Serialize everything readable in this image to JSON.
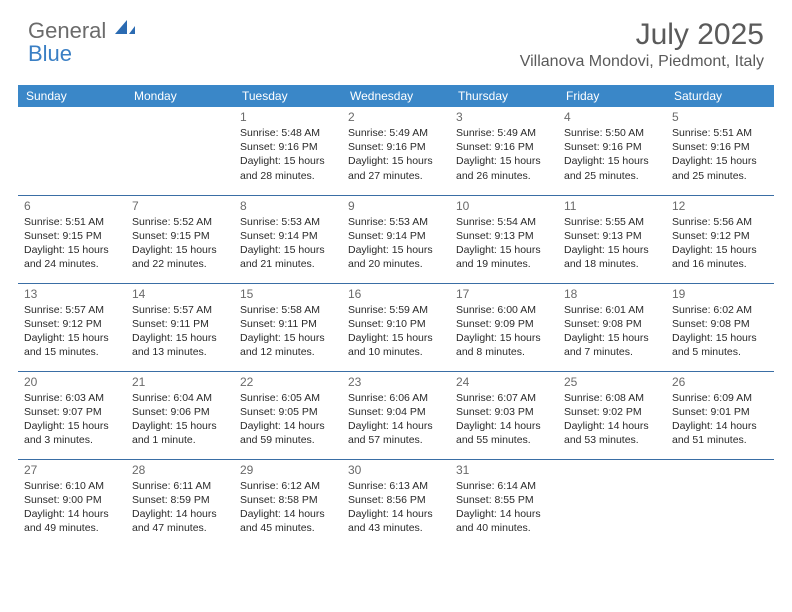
{
  "logo": {
    "word1": "General",
    "word2": "Blue"
  },
  "title": "July 2025",
  "location": "Villanova Mondovi, Piedmont, Italy",
  "colors": {
    "header_bg": "#3a87c8",
    "header_text": "#ffffff",
    "row_border": "#3a6ea5",
    "text_dark": "#2a2a2a",
    "text_muted": "#6a6a6a",
    "logo_gray": "#6b6b6b",
    "logo_blue": "#3a7fc4",
    "title_color": "#5a5a5a",
    "page_bg": "#ffffff"
  },
  "typography": {
    "month_title_pt": 30,
    "location_pt": 16,
    "weekday_pt": 12,
    "daynum_pt": 12,
    "dayinfo_pt": 10.5,
    "logo_pt": 22,
    "font_family": "Arial"
  },
  "weekdays": [
    "Sunday",
    "Monday",
    "Tuesday",
    "Wednesday",
    "Thursday",
    "Friday",
    "Saturday"
  ],
  "grid": [
    [
      null,
      null,
      {
        "n": "1",
        "sunrise": "Sunrise: 5:48 AM",
        "sunset": "Sunset: 9:16 PM",
        "dl1": "Daylight: 15 hours",
        "dl2": "and 28 minutes."
      },
      {
        "n": "2",
        "sunrise": "Sunrise: 5:49 AM",
        "sunset": "Sunset: 9:16 PM",
        "dl1": "Daylight: 15 hours",
        "dl2": "and 27 minutes."
      },
      {
        "n": "3",
        "sunrise": "Sunrise: 5:49 AM",
        "sunset": "Sunset: 9:16 PM",
        "dl1": "Daylight: 15 hours",
        "dl2": "and 26 minutes."
      },
      {
        "n": "4",
        "sunrise": "Sunrise: 5:50 AM",
        "sunset": "Sunset: 9:16 PM",
        "dl1": "Daylight: 15 hours",
        "dl2": "and 25 minutes."
      },
      {
        "n": "5",
        "sunrise": "Sunrise: 5:51 AM",
        "sunset": "Sunset: 9:16 PM",
        "dl1": "Daylight: 15 hours",
        "dl2": "and 25 minutes."
      }
    ],
    [
      {
        "n": "6",
        "sunrise": "Sunrise: 5:51 AM",
        "sunset": "Sunset: 9:15 PM",
        "dl1": "Daylight: 15 hours",
        "dl2": "and 24 minutes."
      },
      {
        "n": "7",
        "sunrise": "Sunrise: 5:52 AM",
        "sunset": "Sunset: 9:15 PM",
        "dl1": "Daylight: 15 hours",
        "dl2": "and 22 minutes."
      },
      {
        "n": "8",
        "sunrise": "Sunrise: 5:53 AM",
        "sunset": "Sunset: 9:14 PM",
        "dl1": "Daylight: 15 hours",
        "dl2": "and 21 minutes."
      },
      {
        "n": "9",
        "sunrise": "Sunrise: 5:53 AM",
        "sunset": "Sunset: 9:14 PM",
        "dl1": "Daylight: 15 hours",
        "dl2": "and 20 minutes."
      },
      {
        "n": "10",
        "sunrise": "Sunrise: 5:54 AM",
        "sunset": "Sunset: 9:13 PM",
        "dl1": "Daylight: 15 hours",
        "dl2": "and 19 minutes."
      },
      {
        "n": "11",
        "sunrise": "Sunrise: 5:55 AM",
        "sunset": "Sunset: 9:13 PM",
        "dl1": "Daylight: 15 hours",
        "dl2": "and 18 minutes."
      },
      {
        "n": "12",
        "sunrise": "Sunrise: 5:56 AM",
        "sunset": "Sunset: 9:12 PM",
        "dl1": "Daylight: 15 hours",
        "dl2": "and 16 minutes."
      }
    ],
    [
      {
        "n": "13",
        "sunrise": "Sunrise: 5:57 AM",
        "sunset": "Sunset: 9:12 PM",
        "dl1": "Daylight: 15 hours",
        "dl2": "and 15 minutes."
      },
      {
        "n": "14",
        "sunrise": "Sunrise: 5:57 AM",
        "sunset": "Sunset: 9:11 PM",
        "dl1": "Daylight: 15 hours",
        "dl2": "and 13 minutes."
      },
      {
        "n": "15",
        "sunrise": "Sunrise: 5:58 AM",
        "sunset": "Sunset: 9:11 PM",
        "dl1": "Daylight: 15 hours",
        "dl2": "and 12 minutes."
      },
      {
        "n": "16",
        "sunrise": "Sunrise: 5:59 AM",
        "sunset": "Sunset: 9:10 PM",
        "dl1": "Daylight: 15 hours",
        "dl2": "and 10 minutes."
      },
      {
        "n": "17",
        "sunrise": "Sunrise: 6:00 AM",
        "sunset": "Sunset: 9:09 PM",
        "dl1": "Daylight: 15 hours",
        "dl2": "and 8 minutes."
      },
      {
        "n": "18",
        "sunrise": "Sunrise: 6:01 AM",
        "sunset": "Sunset: 9:08 PM",
        "dl1": "Daylight: 15 hours",
        "dl2": "and 7 minutes."
      },
      {
        "n": "19",
        "sunrise": "Sunrise: 6:02 AM",
        "sunset": "Sunset: 9:08 PM",
        "dl1": "Daylight: 15 hours",
        "dl2": "and 5 minutes."
      }
    ],
    [
      {
        "n": "20",
        "sunrise": "Sunrise: 6:03 AM",
        "sunset": "Sunset: 9:07 PM",
        "dl1": "Daylight: 15 hours",
        "dl2": "and 3 minutes."
      },
      {
        "n": "21",
        "sunrise": "Sunrise: 6:04 AM",
        "sunset": "Sunset: 9:06 PM",
        "dl1": "Daylight: 15 hours",
        "dl2": "and 1 minute."
      },
      {
        "n": "22",
        "sunrise": "Sunrise: 6:05 AM",
        "sunset": "Sunset: 9:05 PM",
        "dl1": "Daylight: 14 hours",
        "dl2": "and 59 minutes."
      },
      {
        "n": "23",
        "sunrise": "Sunrise: 6:06 AM",
        "sunset": "Sunset: 9:04 PM",
        "dl1": "Daylight: 14 hours",
        "dl2": "and 57 minutes."
      },
      {
        "n": "24",
        "sunrise": "Sunrise: 6:07 AM",
        "sunset": "Sunset: 9:03 PM",
        "dl1": "Daylight: 14 hours",
        "dl2": "and 55 minutes."
      },
      {
        "n": "25",
        "sunrise": "Sunrise: 6:08 AM",
        "sunset": "Sunset: 9:02 PM",
        "dl1": "Daylight: 14 hours",
        "dl2": "and 53 minutes."
      },
      {
        "n": "26",
        "sunrise": "Sunrise: 6:09 AM",
        "sunset": "Sunset: 9:01 PM",
        "dl1": "Daylight: 14 hours",
        "dl2": "and 51 minutes."
      }
    ],
    [
      {
        "n": "27",
        "sunrise": "Sunrise: 6:10 AM",
        "sunset": "Sunset: 9:00 PM",
        "dl1": "Daylight: 14 hours",
        "dl2": "and 49 minutes."
      },
      {
        "n": "28",
        "sunrise": "Sunrise: 6:11 AM",
        "sunset": "Sunset: 8:59 PM",
        "dl1": "Daylight: 14 hours",
        "dl2": "and 47 minutes."
      },
      {
        "n": "29",
        "sunrise": "Sunrise: 6:12 AM",
        "sunset": "Sunset: 8:58 PM",
        "dl1": "Daylight: 14 hours",
        "dl2": "and 45 minutes."
      },
      {
        "n": "30",
        "sunrise": "Sunrise: 6:13 AM",
        "sunset": "Sunset: 8:56 PM",
        "dl1": "Daylight: 14 hours",
        "dl2": "and 43 minutes."
      },
      {
        "n": "31",
        "sunrise": "Sunrise: 6:14 AM",
        "sunset": "Sunset: 8:55 PM",
        "dl1": "Daylight: 14 hours",
        "dl2": "and 40 minutes."
      },
      null,
      null
    ]
  ]
}
